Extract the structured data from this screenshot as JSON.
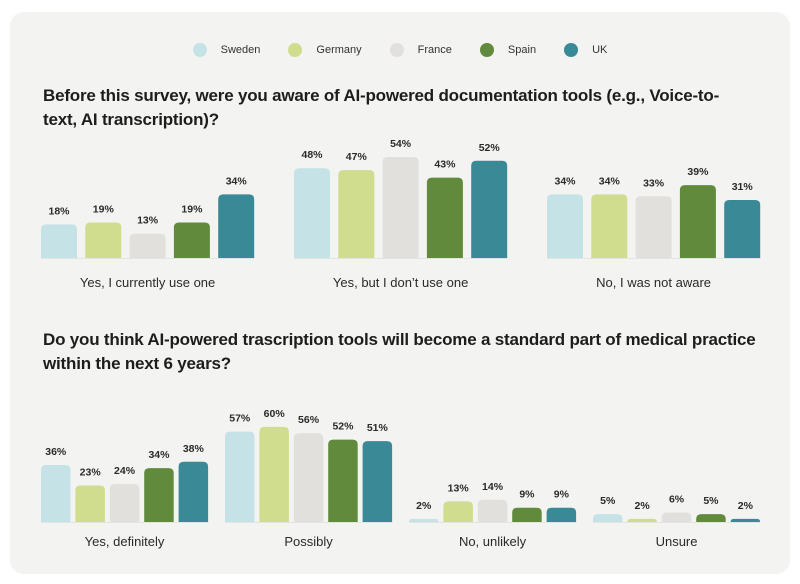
{
  "legend": [
    {
      "name": "Sweden",
      "color": "#c5e3e6"
    },
    {
      "name": "Germany",
      "color": "#d0dc8e"
    },
    {
      "name": "France",
      "color": "#e1e0dc"
    },
    {
      "name": "Spain",
      "color": "#628a3d"
    },
    {
      "name": "UK",
      "color": "#3a8997"
    }
  ],
  "chart_data": [
    {
      "type": "bar",
      "title": "Before this survey, were you aware of AI-powered documentation tools (e.g., Voice-to-text, AI transcription)?",
      "categories": [
        "Yes, I currently use one",
        "Yes, but I don’t use one",
        "No, I was not aware"
      ],
      "series": [
        {
          "name": "Sweden",
          "values": [
            18,
            48,
            34
          ]
        },
        {
          "name": "Germany",
          "values": [
            19,
            47,
            34
          ]
        },
        {
          "name": "France",
          "values": [
            13,
            54,
            33
          ]
        },
        {
          "name": "Spain",
          "values": [
            19,
            43,
            39
          ]
        },
        {
          "name": "UK",
          "values": [
            34,
            52,
            31
          ]
        }
      ],
      "unit": "%",
      "xlabel": "",
      "ylabel": "",
      "ylim": [
        0,
        60
      ],
      "grid": false,
      "legend_position": "top-center"
    },
    {
      "type": "bar",
      "title": "Do you think AI-powered trascription tools will become a standard part of medical practice within the next 6 years?",
      "categories": [
        "Yes, definitely",
        "Possibly",
        "No, unlikely",
        "Unsure"
      ],
      "series": [
        {
          "name": "Sweden",
          "values": [
            36,
            57,
            2,
            5
          ]
        },
        {
          "name": "Germany",
          "values": [
            23,
            60,
            13,
            2
          ]
        },
        {
          "name": "France",
          "values": [
            24,
            56,
            14,
            6
          ]
        },
        {
          "name": "Spain",
          "values": [
            34,
            52,
            9,
            5
          ]
        },
        {
          "name": "UK",
          "values": [
            38,
            51,
            9,
            2
          ]
        }
      ],
      "unit": "%",
      "xlabel": "",
      "ylabel": "",
      "ylim": [
        0,
        65
      ],
      "grid": false,
      "legend_position": "top-center"
    }
  ]
}
